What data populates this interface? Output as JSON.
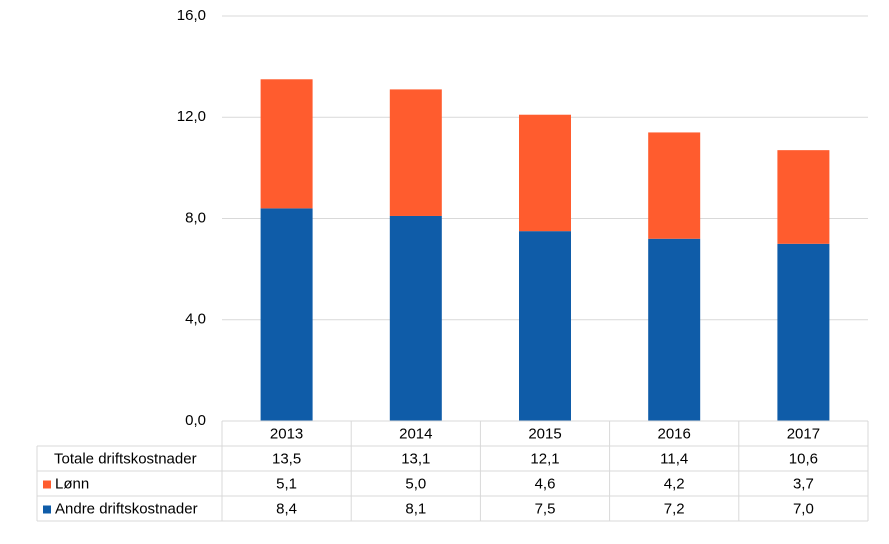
{
  "chart_data": {
    "type": "stacked-bar",
    "categories": [
      "2013",
      "2014",
      "2015",
      "2016",
      "2017"
    ],
    "series": [
      {
        "name": "Andre driftskostnader",
        "color": "#0f5ca8",
        "values": [
          8.4,
          8.1,
          7.5,
          7.2,
          7.0
        ],
        "value_labels": [
          "8,4",
          "8,1",
          "7,5",
          "7,2",
          "7,0"
        ]
      },
      {
        "name": "Lønn",
        "color": "#ff5c2e",
        "values": [
          5.1,
          5.0,
          4.6,
          4.2,
          3.7
        ],
        "value_labels": [
          "5,1",
          "5,0",
          "4,6",
          "4,2",
          "3,7"
        ]
      }
    ],
    "totals": {
      "name": "Totale driftskostnader",
      "values": [
        13.5,
        13.1,
        12.1,
        11.4,
        10.6
      ],
      "value_labels": [
        "13,5",
        "13,1",
        "12,1",
        "11,4",
        "10,6"
      ]
    },
    "ylim": [
      0,
      16
    ],
    "yticks": [
      {
        "value": 0,
        "label": "0,0"
      },
      {
        "value": 4,
        "label": "4,0"
      },
      {
        "value": 8,
        "label": "8,0"
      },
      {
        "value": 12,
        "label": "12,0"
      },
      {
        "value": 16,
        "label": "16,0"
      }
    ],
    "grid": true
  }
}
